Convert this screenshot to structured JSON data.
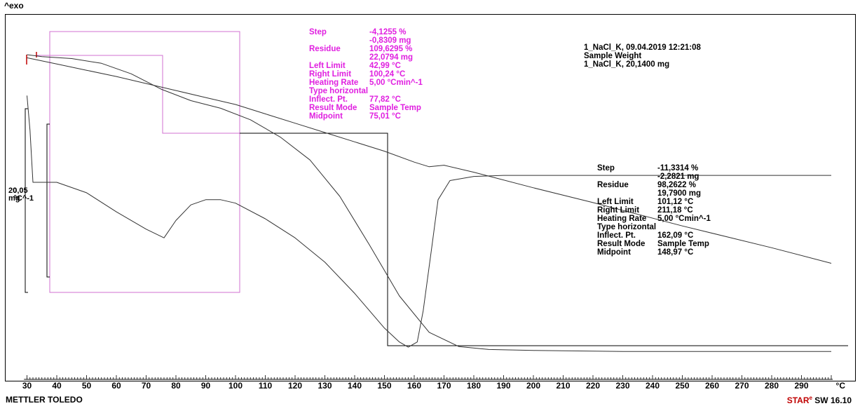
{
  "header": {
    "exo_label": "^exo"
  },
  "footer": {
    "brand": "METTLER TOLEDO",
    "software_star": "STAR",
    "software_sup": "e",
    "software_rest": " SW 16.10"
  },
  "sample_info": {
    "line1": "1_NaCl_K, 09.04.2019 12:21:08",
    "line2": "Sample Weight",
    "line3": "1_NaCl_K, 20,1400 mg"
  },
  "scale_labels": {
    "line1_a": "20",
    "line1_b": "0,05",
    "line2_a": "mg",
    "line2_b": "°C^-1"
  },
  "annotation_step1": {
    "color": "#e020e0",
    "rows": [
      {
        "key": "Step",
        "value": "-4,1255 %"
      },
      {
        "key": "",
        "value": "-0,8309 mg"
      },
      {
        "key": "Residue",
        "value": "109,6295 %"
      },
      {
        "key": "",
        "value": "22,0794 mg"
      },
      {
        "key": "Left Limit",
        "value": "42,99 °C"
      },
      {
        "key": "Right Limit",
        "value": "100,24 °C"
      },
      {
        "key": "Heating Rate",
        "value": "5,00 °Cmin^-1"
      },
      {
        "key": "Type horizontal",
        "value": ""
      },
      {
        "key": "Inflect. Pt.",
        "value": "77,82 °C"
      },
      {
        "key": "Result Mode",
        "value": "Sample Temp"
      },
      {
        "key": "Midpoint",
        "value": "75,01 °C"
      }
    ]
  },
  "annotation_step2": {
    "color": "#000000",
    "rows": [
      {
        "key": "Step",
        "value": "-11,3314 %"
      },
      {
        "key": "",
        "value": "-2,2821 mg"
      },
      {
        "key": "Residue",
        "value": "98,2622 %"
      },
      {
        "key": "",
        "value": "19,7900 mg"
      },
      {
        "key": "Left Limit",
        "value": "101,12 °C"
      },
      {
        "key": "Right Limit",
        "value": "211,18 °C"
      },
      {
        "key": "Heating Rate",
        "value": "5,00 °Cmin^-1"
      },
      {
        "key": "Type horizontal",
        "value": ""
      },
      {
        "key": "Inflect. Pt.",
        "value": "162,09 °C"
      },
      {
        "key": "Result Mode",
        "value": "Sample Temp"
      },
      {
        "key": "Midpoint",
        "value": "148,97 °C"
      }
    ]
  },
  "chart_data": {
    "type": "line",
    "xlabel": "°C",
    "x_ticks": [
      30,
      40,
      50,
      60,
      70,
      80,
      90,
      100,
      110,
      120,
      130,
      140,
      150,
      160,
      170,
      180,
      190,
      200,
      210,
      220,
      230,
      240,
      250,
      260,
      270,
      280,
      290
    ],
    "xlim": [
      29,
      301
    ],
    "series": [
      {
        "x": [
          30,
          35,
          45,
          55,
          65,
          75,
          85,
          95,
          105,
          115,
          125,
          135,
          145,
          155,
          165,
          175,
          185,
          200,
          230,
          260,
          300
        ],
        "y": [
          100,
          99.8,
          99.6,
          99.1,
          98.0,
          96.4,
          95.2,
          94.4,
          93.2,
          91.4,
          89.0,
          85.2,
          80.1,
          74.8,
          71.0,
          69.5,
          69.2,
          69.1,
          69.0,
          69.0,
          69.0
        ]
      },
      {
        "x": [
          30,
          40,
          50,
          60,
          70,
          80,
          90,
          100,
          110,
          120,
          130,
          140,
          150,
          160,
          165,
          170,
          180,
          200,
          220,
          250,
          280,
          300
        ],
        "y": [
          99.6,
          98.8,
          98.0,
          97.2,
          96.3,
          95.4,
          94.5,
          93.6,
          92.4,
          91.2,
          90.0,
          88.8,
          87.6,
          86.2,
          85.6,
          85.8,
          84.9,
          82.9,
          81.0,
          78.0,
          75.2,
          73.2
        ]
      },
      {
        "x": [
          30,
          31,
          32,
          35,
          40,
          50,
          60,
          70,
          76,
          80,
          85,
          90,
          95,
          100,
          110,
          120,
          130,
          140,
          150,
          155,
          158,
          161,
          163,
          166,
          168,
          172,
          180,
          190,
          200,
          220,
          240,
          260,
          280,
          300
        ],
        "y": [
          0.1,
          0.0,
          -0.15,
          -0.15,
          -0.15,
          -0.18,
          -0.235,
          -0.285,
          -0.31,
          -0.26,
          -0.215,
          -0.2,
          -0.2,
          -0.21,
          -0.255,
          -0.31,
          -0.38,
          -0.47,
          -0.57,
          -0.61,
          -0.625,
          -0.61,
          -0.52,
          -0.33,
          -0.2,
          -0.145,
          -0.133,
          -0.13,
          -0.13,
          -0.13,
          -0.13,
          -0.13,
          -0.13,
          -0.13
        ]
      }
    ]
  }
}
